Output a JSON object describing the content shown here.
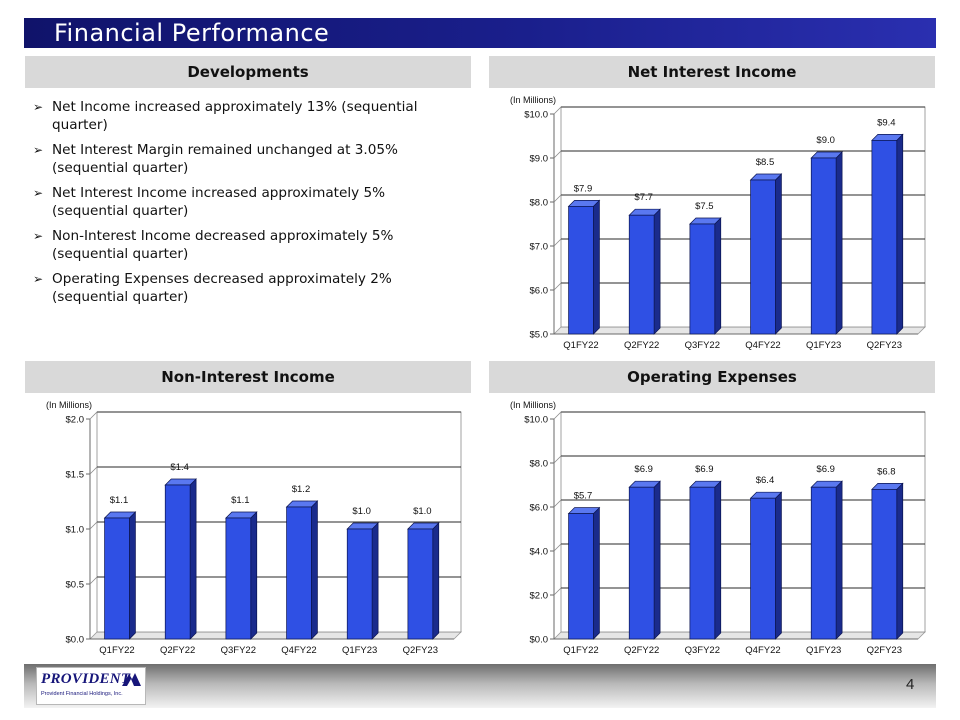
{
  "page_title": "Financial Performance",
  "sections": {
    "developments": "Developments",
    "net_interest_income": "Net Interest Income",
    "non_interest_income": "Non-Interest Income",
    "operating_expenses": "Operating Expenses"
  },
  "bullets": [
    "Net Income increased approximately 13% (sequential quarter)",
    "Net Interest Margin remained unchanged at 3.05% (sequential quarter)",
    "Net Interest Income increased approximately 5% (sequential quarter)",
    "Non-Interest Income decreased approximately 5% (sequential quarter)",
    "Operating Expenses decreased approximately 2% (sequential quarter)"
  ],
  "bullet_glyph": "➢",
  "colors": {
    "bar_front": "#2f50e4",
    "bar_side": "#1a2b8c",
    "bar_top": "#5a78f0",
    "title_bar": "#1a1f8c"
  },
  "chart_data": [
    {
      "id": "nii",
      "type": "bar",
      "title": "Net Interest Income",
      "ylabel": "(In Millions)",
      "categories": [
        "Q1FY22",
        "Q2FY22",
        "Q3FY22",
        "Q4FY22",
        "Q1FY23",
        "Q2FY23"
      ],
      "values": [
        7.9,
        7.7,
        7.5,
        8.5,
        9.0,
        9.4
      ],
      "value_labels": [
        "$7.9",
        "$7.7",
        "$7.5",
        "$8.5",
        "$9.0",
        "$9.4"
      ],
      "ylim": [
        5.0,
        10.0
      ],
      "yticks": [
        5.0,
        6.0,
        7.0,
        8.0,
        9.0,
        10.0
      ],
      "ytick_labels": [
        "$5.0",
        "$6.0",
        "$7.0",
        "$8.0",
        "$9.0",
        "$10.0"
      ],
      "grid": true
    },
    {
      "id": "nonii",
      "type": "bar",
      "title": "Non-Interest Income",
      "ylabel": "(In Millions)",
      "categories": [
        "Q1FY22",
        "Q2FY22",
        "Q3FY22",
        "Q4FY22",
        "Q1FY23",
        "Q2FY23"
      ],
      "values": [
        1.1,
        1.4,
        1.1,
        1.2,
        1.0,
        1.0
      ],
      "value_labels": [
        "$1.1",
        "$1.4",
        "$1.1",
        "$1.2",
        "$1.0",
        "$1.0"
      ],
      "ylim": [
        0.0,
        2.0
      ],
      "yticks": [
        0.0,
        0.5,
        1.0,
        1.5,
        2.0
      ],
      "ytick_labels": [
        "$0.0",
        "$0.5",
        "$1.0",
        "$1.5",
        "$2.0"
      ],
      "grid": true
    },
    {
      "id": "opex",
      "type": "bar",
      "title": "Operating Expenses",
      "ylabel": "(In Millions)",
      "categories": [
        "Q1FY22",
        "Q2FY22",
        "Q3FY22",
        "Q4FY22",
        "Q1FY23",
        "Q2FY23"
      ],
      "values": [
        5.7,
        6.9,
        6.9,
        6.4,
        6.9,
        6.8
      ],
      "value_labels": [
        "$5.7",
        "$6.9",
        "$6.9",
        "$6.4",
        "$6.9",
        "$6.8"
      ],
      "ylim": [
        0.0,
        10.0
      ],
      "yticks": [
        0.0,
        2.0,
        4.0,
        6.0,
        8.0,
        10.0
      ],
      "ytick_labels": [
        "$0.0",
        "$2.0",
        "$4.0",
        "$6.0",
        "$8.0",
        "$10.0"
      ],
      "grid": true
    }
  ],
  "footer": {
    "logo_text": "PROVIDENT",
    "logo_subtext": "Provident Financial Holdings, Inc.",
    "page_number": "4"
  }
}
